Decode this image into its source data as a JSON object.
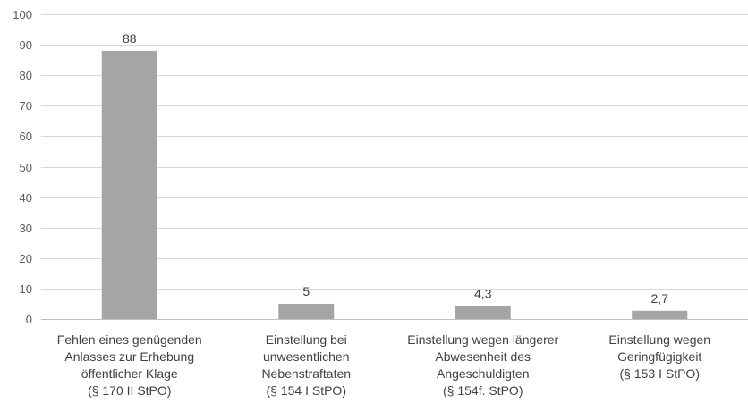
{
  "chart_data": {
    "type": "bar",
    "title": "",
    "xlabel": "",
    "ylabel": "",
    "ylim": [
      0,
      100
    ],
    "yticks": [
      0,
      10,
      20,
      30,
      40,
      50,
      60,
      70,
      80,
      90,
      100
    ],
    "grid": true,
    "bar_color": "#a5a5a5",
    "categories": [
      [
        "Fehlen eines genügenden",
        "Anlasses zur Erhebung",
        "öffentlicher Klage",
        "(§ 170 II StPO)"
      ],
      [
        "Einstellung bei",
        "unwesentlichen",
        "Nebenstraftaten",
        "(§ 154 I StPO)"
      ],
      [
        "Einstellung wegen längerer",
        "Abwesenheit des",
        "Angeschuldigten",
        "(§ 154f. StPO)"
      ],
      [
        "Einstellung wegen",
        "Geringfügigkeit",
        "(§ 153 I StPO)"
      ]
    ],
    "values": [
      88,
      5,
      4.3,
      2.7
    ],
    "value_labels": [
      "88",
      "5",
      "4,3",
      "2,7"
    ]
  }
}
